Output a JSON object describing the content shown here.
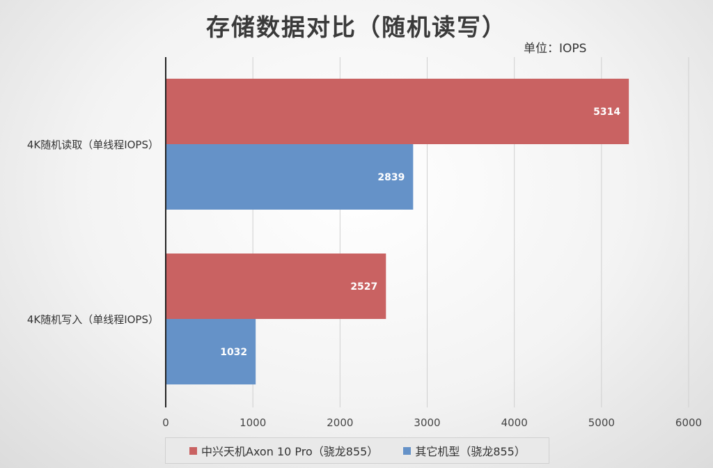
{
  "chart_data": {
    "type": "bar",
    "orientation": "horizontal",
    "title": "存储数据对比（随机读写）",
    "unit": "单位：IOPS",
    "categories": [
      "4K随机读取（单线程IOPS）",
      "4K随机写入（单线程IOPS）"
    ],
    "series": [
      {
        "name": "中兴天机Axon 10 Pro（骁龙855）",
        "color": "#c96262",
        "values": [
          5314,
          2527
        ]
      },
      {
        "name": "其它机型（骁龙855）",
        "color": "#6592c8",
        "values": [
          2839,
          1032
        ]
      }
    ],
    "xlim": [
      0,
      6000
    ],
    "xticks": [
      0,
      1000,
      2000,
      3000,
      4000,
      5000,
      6000
    ],
    "grid": true,
    "legend": "bottom"
  }
}
